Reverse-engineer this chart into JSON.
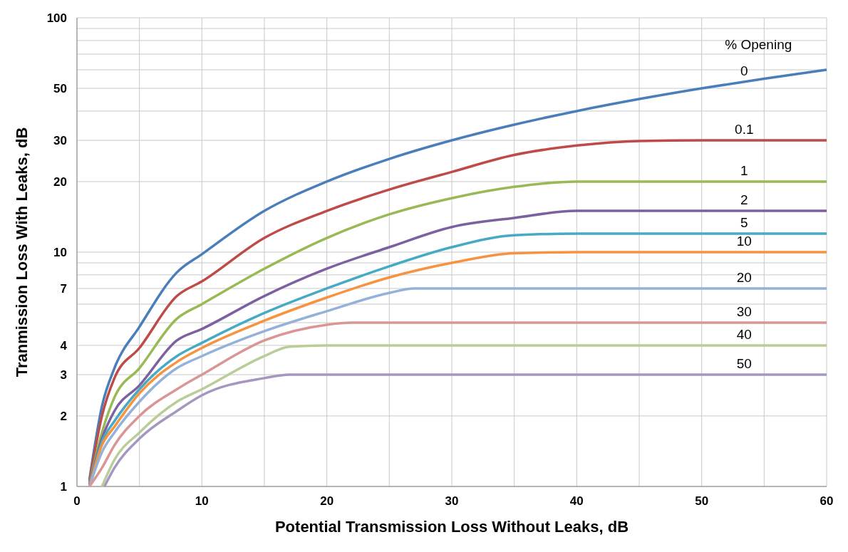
{
  "chart_data": {
    "type": "line",
    "xlabel": "Potential Transmission Loss Without Leaks, dB",
    "ylabel": "Tranmission Loss With Leaks, dB",
    "legend_title": "% Opening",
    "log": "y",
    "grid": true,
    "marker": "none",
    "line_style": "solid",
    "xlim": [
      0,
      60
    ],
    "xticks": [
      0,
      {
        "value": 5,
        "label": null
      },
      10,
      {
        "value": 15,
        "label": null
      },
      20,
      {
        "value": 25,
        "label": null
      },
      30,
      {
        "value": 35,
        "label": null
      },
      40,
      {
        "value": 45,
        "label": null
      },
      50,
      {
        "value": 55,
        "label": null
      },
      60
    ],
    "ylim": [
      1,
      100
    ],
    "yticks": [
      1,
      2,
      3,
      4,
      {
        "value": 5,
        "label": null
      },
      {
        "value": 6,
        "label": null
      },
      7,
      {
        "value": 8,
        "label": null
      },
      {
        "value": 9,
        "label": null
      },
      10,
      20,
      30,
      {
        "value": 40,
        "label": null
      },
      50,
      {
        "value": 60,
        "label": null
      },
      {
        "value": 70,
        "label": null
      },
      {
        "value": 80,
        "label": null
      },
      {
        "value": 90,
        "label": null
      },
      100
    ],
    "series": [
      {
        "name": "0",
        "color": "#4a7ebb",
        "x": [
          1,
          2,
          3,
          5,
          8,
          10,
          15,
          20,
          25,
          30,
          35,
          40,
          45,
          50,
          55,
          60
        ],
        "values": [
          1.07,
          2.2,
          3.2,
          4.8,
          8.2,
          9.8,
          15,
          20,
          25,
          30,
          35,
          40,
          45,
          50,
          55,
          60
        ]
      },
      {
        "name": "0.1",
        "color": "#be4b48",
        "x": [
          1,
          2,
          3,
          5,
          8,
          10,
          15,
          20,
          25,
          30,
          35,
          40,
          45,
          50,
          60
        ],
        "values": [
          1.05,
          2,
          2.9,
          3.9,
          6.5,
          7.5,
          11.5,
          15,
          18.5,
          22,
          26,
          28.5,
          29.8,
          30,
          30
        ]
      },
      {
        "name": "1",
        "color": "#98b954",
        "x": [
          1,
          2,
          3,
          5,
          8,
          10,
          15,
          20,
          25,
          30,
          35,
          40,
          45,
          60
        ],
        "values": [
          1.03,
          1.7,
          2.4,
          3.2,
          5.2,
          6,
          8.5,
          11.5,
          14.5,
          17,
          19,
          20,
          20,
          20
        ]
      },
      {
        "name": "2",
        "color": "#7d60a0",
        "x": [
          1,
          2,
          3,
          5,
          8,
          10,
          15,
          20,
          25,
          30,
          35,
          40,
          45,
          60
        ],
        "values": [
          1.02,
          1.6,
          2.1,
          2.7,
          4.2,
          4.7,
          6.5,
          8.5,
          10.5,
          12.8,
          14,
          15,
          15,
          15
        ]
      },
      {
        "name": "5",
        "color": "#46aac5",
        "x": [
          1,
          2,
          3,
          5,
          8,
          10,
          15,
          20,
          25,
          30,
          35,
          40,
          60
        ],
        "values": [
          1,
          1.55,
          1.9,
          2.6,
          3.6,
          4.1,
          5.5,
          7,
          8.7,
          10.5,
          11.8,
          12,
          12
        ]
      },
      {
        "name": "10",
        "color": "#f69240",
        "x": [
          1,
          2,
          3,
          5,
          8,
          10,
          15,
          20,
          25,
          30,
          35,
          40,
          60
        ],
        "values": [
          1,
          1.5,
          1.8,
          2.5,
          3.4,
          3.9,
          5.1,
          6.4,
          7.8,
          9,
          9.9,
          10,
          10
        ]
      },
      {
        "name": "20",
        "color": "#94b1da",
        "x": [
          1,
          2,
          3,
          5,
          8,
          10,
          15,
          20,
          25,
          27,
          30,
          60
        ],
        "values": [
          1,
          1.4,
          1.7,
          2.3,
          3.2,
          3.6,
          4.6,
          5.6,
          6.7,
          7,
          7,
          7
        ]
      },
      {
        "name": "30",
        "color": "#d99694",
        "x": [
          1,
          2,
          3,
          5,
          8,
          10,
          15,
          20,
          22,
          60
        ],
        "values": [
          1,
          1.2,
          1.5,
          2,
          2.6,
          3,
          4.2,
          4.9,
          5,
          5
        ]
      },
      {
        "name": "40",
        "color": "#b9cd96",
        "x": [
          2,
          3,
          5,
          8,
          10,
          15,
          17,
          20,
          60
        ],
        "values": [
          1,
          1.3,
          1.7,
          2.3,
          2.6,
          3.6,
          3.95,
          4,
          4
        ]
      },
      {
        "name": "50",
        "color": "#a597c0",
        "x": [
          2.2,
          3,
          5,
          8,
          10,
          15,
          17,
          20,
          60
        ],
        "values": [
          1,
          1.2,
          1.6,
          2.1,
          2.45,
          2.9,
          3,
          3,
          3
        ]
      }
    ]
  }
}
